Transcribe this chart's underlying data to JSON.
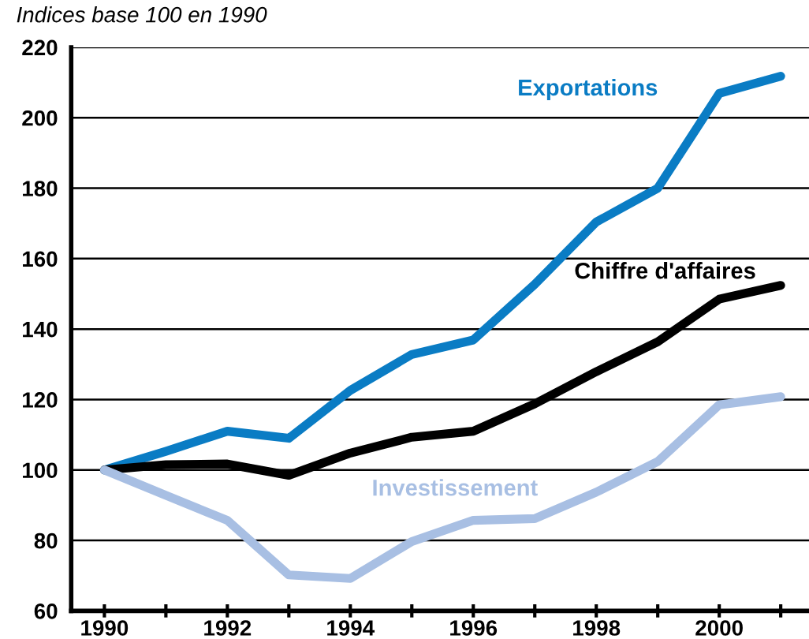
{
  "chart_data": {
    "type": "line",
    "title": "Indices base 100 en 1990",
    "x": [
      1990,
      1991,
      1992,
      1993,
      1994,
      1995,
      1996,
      1997,
      1998,
      1999,
      2000,
      2001
    ],
    "series": [
      {
        "name": "Exportations",
        "color": "#0a7cc4",
        "values": [
          100,
          105.3,
          111,
          109,
          122.6,
          132.8,
          136.9,
          152.7,
          170.4,
          180,
          206.9,
          211.8
        ]
      },
      {
        "name": "Chiffre d'affaires",
        "color": "#000000",
        "values": [
          100,
          101.5,
          101.7,
          98.5,
          104.8,
          109.3,
          111,
          118.8,
          127.9,
          136.4,
          148.5,
          152.4
        ]
      },
      {
        "name": "Investissement",
        "color": "#a8bfe3",
        "values": [
          100,
          92.8,
          85.7,
          70.2,
          69.2,
          79.7,
          85.7,
          86.2,
          93.7,
          102.4,
          118.5,
          120.8
        ]
      }
    ],
    "xlim": [
      1989.46,
      2001.46
    ],
    "xticks": [
      1990,
      {
        "value": 1991,
        "label": null
      },
      1992,
      {
        "value": 1993,
        "label": null
      },
      1994,
      {
        "value": 1995,
        "label": null
      },
      1996,
      {
        "value": 1997,
        "label": null
      },
      1998,
      {
        "value": 1999,
        "label": null
      },
      2000,
      {
        "value": 2001,
        "label": null
      }
    ],
    "ylim": [
      60,
      220
    ],
    "yticks": [
      60,
      80,
      100,
      120,
      140,
      160,
      180,
      200,
      220
    ],
    "grid": "y",
    "legend": false,
    "marker": "none",
    "line_style": "solid"
  }
}
